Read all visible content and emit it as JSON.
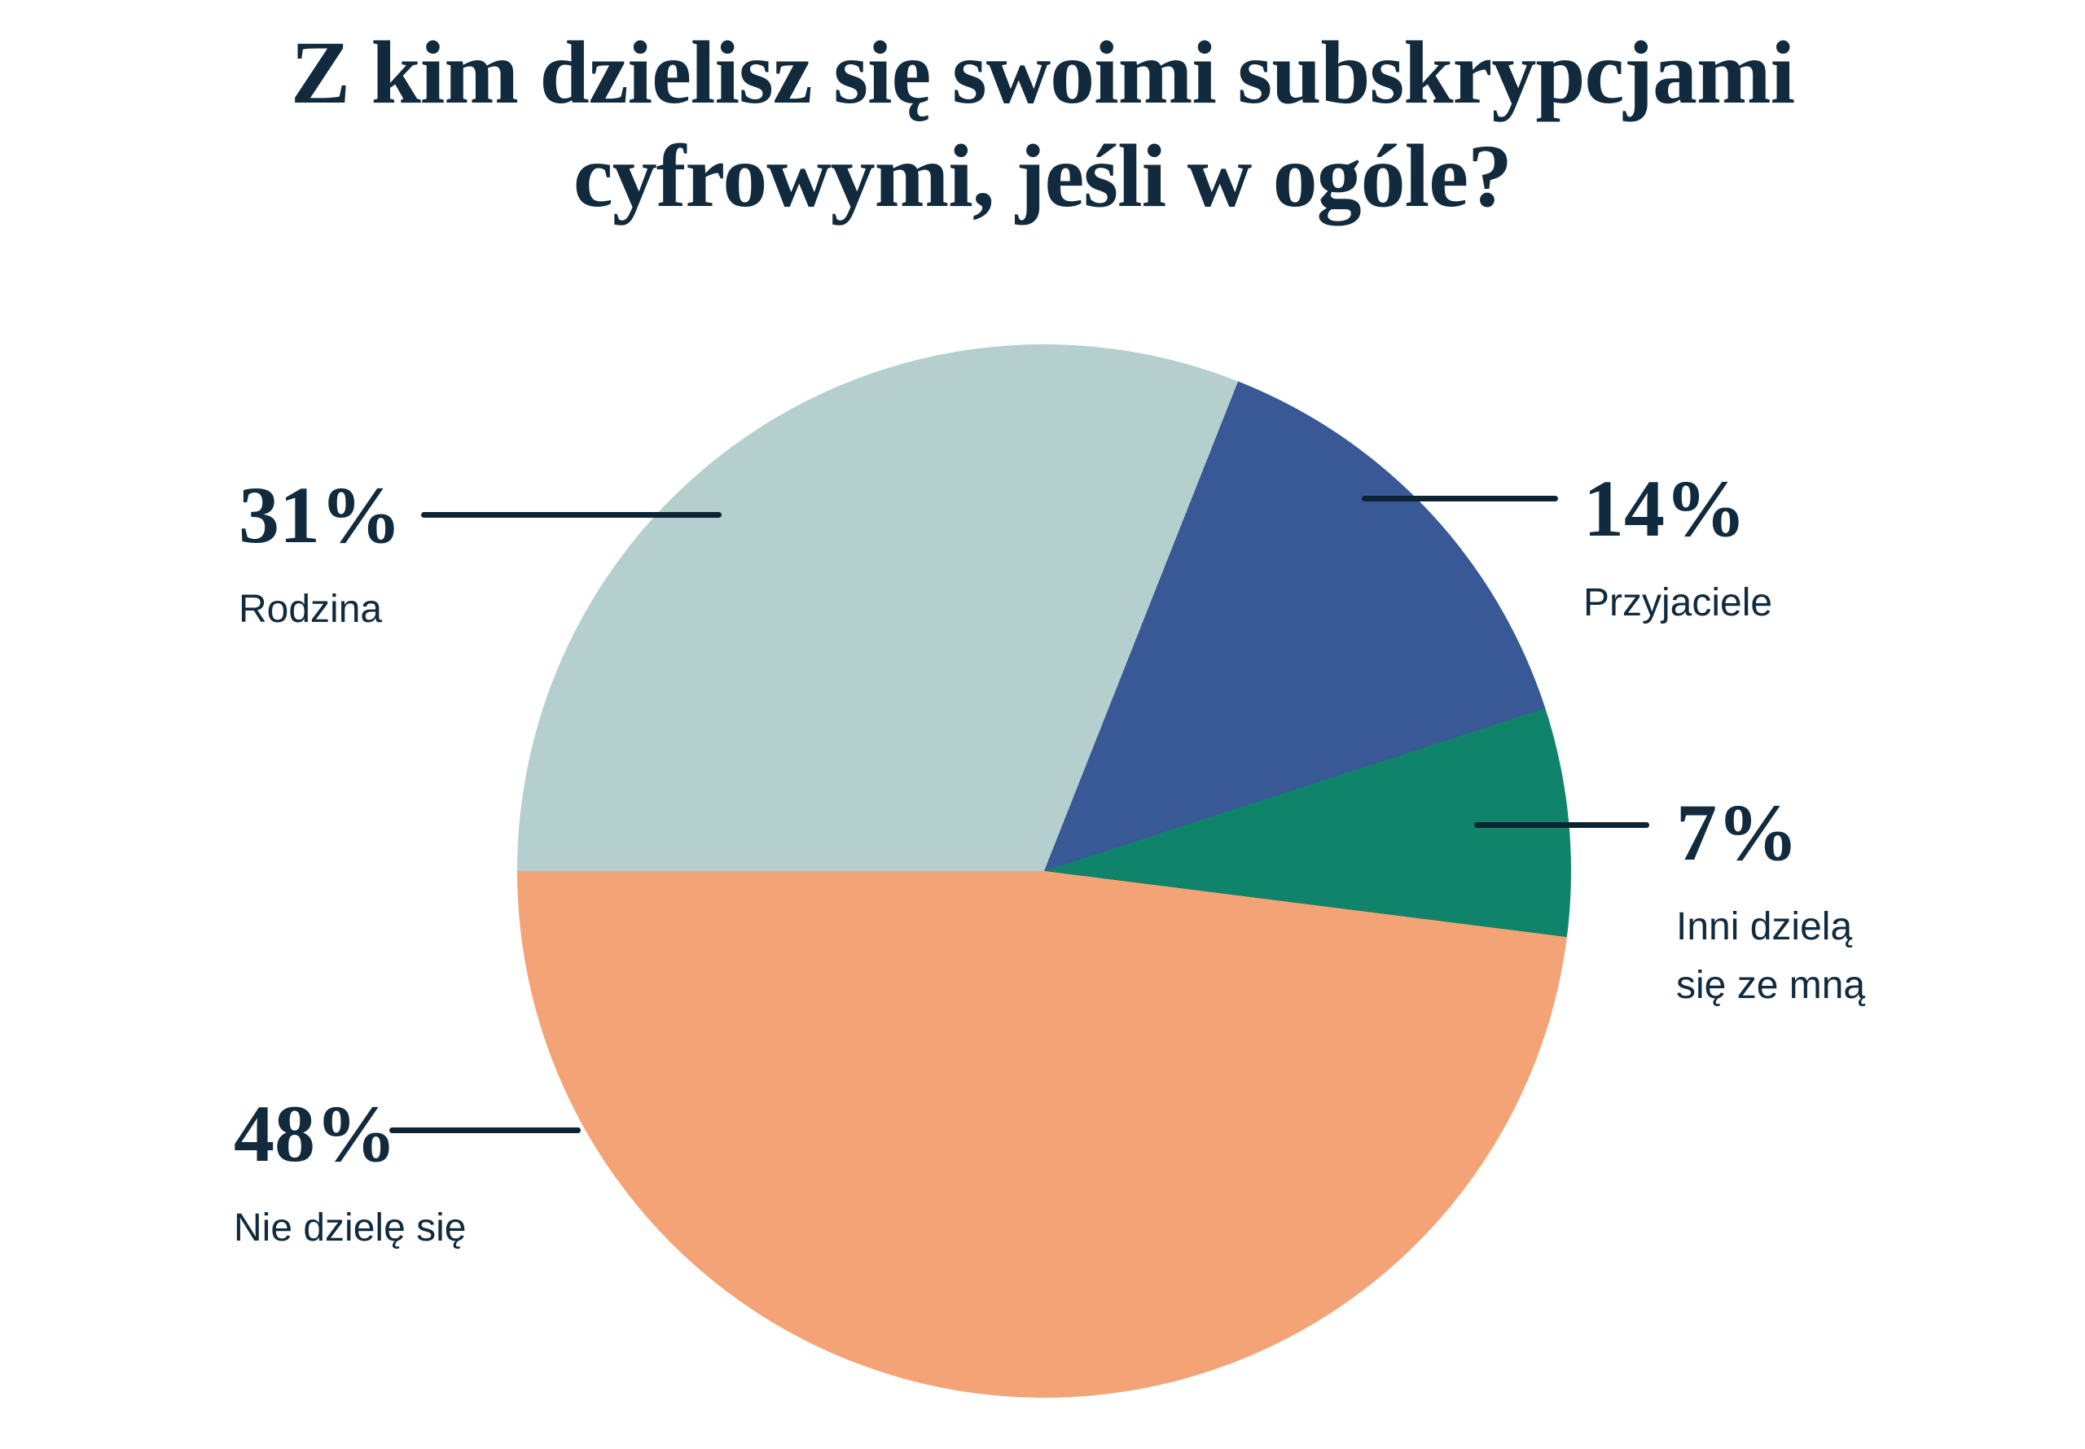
{
  "title": {
    "line1": "Z kim dzielisz się swoimi subskrypcjami",
    "line2": "cyfrowymi, jeśli w ogóle?"
  },
  "chart_data": {
    "type": "pie",
    "title": "Z kim dzielisz się swoimi subskrypcjami cyfrowymi, jeśli w ogóle?",
    "unit": "%",
    "direction": "clockwise",
    "start_angle_css_deg": 270,
    "legend_position": "callouts-around-pie",
    "slices": [
      {
        "label": "Rodzina",
        "value": 31,
        "pct_label": "31%",
        "color": "#b4cfce"
      },
      {
        "label": "Przyjaciele",
        "value": 14,
        "pct_label": "14%",
        "color": "#385896"
      },
      {
        "label": "Inni dzielą się ze mną",
        "value": 7,
        "pct_label": "7%",
        "color": "#10846a"
      },
      {
        "label": "Nie dzielę się",
        "value": 48,
        "pct_label": "48%",
        "color": "#f3a375"
      }
    ],
    "colors": {
      "text": "#112a3d",
      "leader_line": "#0e2435",
      "background": "#ffffff"
    }
  }
}
